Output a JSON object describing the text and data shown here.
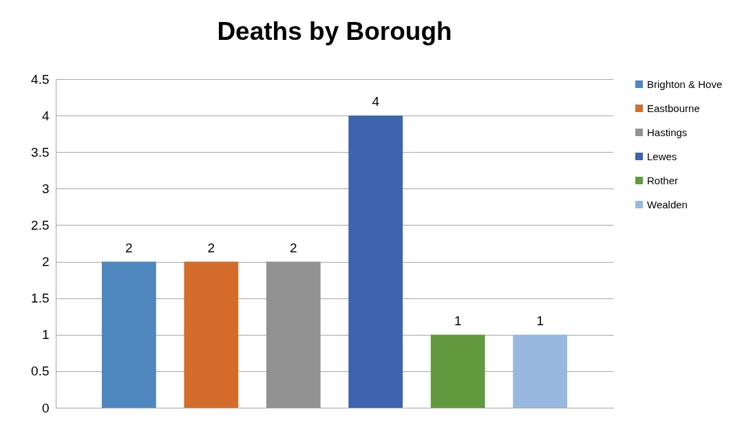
{
  "chart_data": {
    "type": "bar",
    "title": "Deaths by Borough",
    "categories": [
      null
    ],
    "series": [
      {
        "name": "Brighton & Hove",
        "color": "#4f87bf",
        "values": [
          2
        ]
      },
      {
        "name": "Eastbourne",
        "color": "#d46c2b",
        "values": [
          2
        ]
      },
      {
        "name": "Hastings",
        "color": "#929292",
        "values": [
          2
        ]
      },
      {
        "name": "Lewes",
        "color": "#3d64ad",
        "values": [
          4
        ]
      },
      {
        "name": "Rother",
        "color": "#629b3f",
        "values": [
          1
        ]
      },
      {
        "name": "Wealden",
        "color": "#98b8df",
        "values": [
          1
        ]
      }
    ],
    "ylim": [
      0,
      4.5
    ],
    "yticks": [
      0,
      0.5,
      1,
      1.5,
      2,
      2.5,
      3,
      3.5,
      4,
      4.5
    ],
    "grid": "y",
    "data_labels": true,
    "legend": "right"
  }
}
